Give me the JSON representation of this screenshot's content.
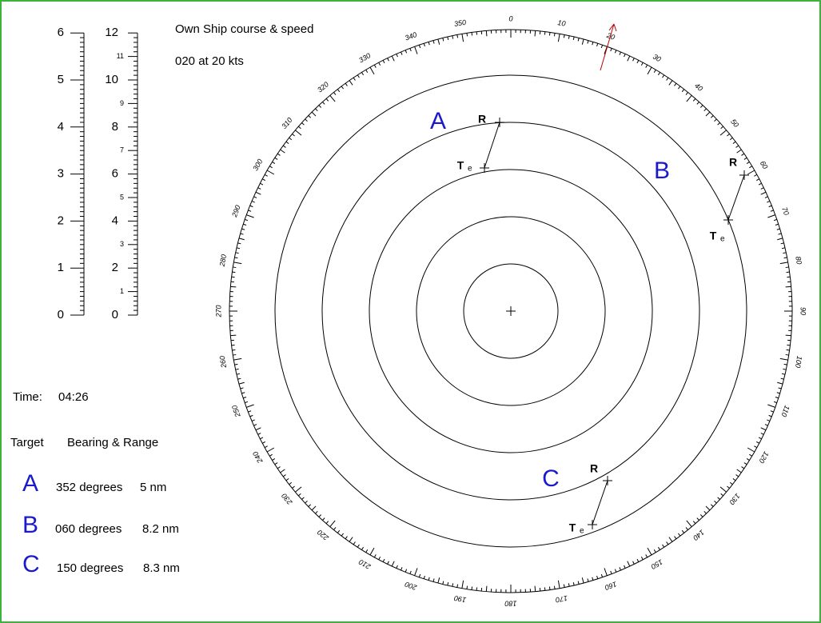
{
  "header": {
    "title": "Own Ship course & speed",
    "course_speed": "020 at 20 kts"
  },
  "time": {
    "label": "Time:",
    "value": "04:26"
  },
  "table": {
    "headers": [
      "Target",
      "Bearing & Range"
    ],
    "rows": [
      [
        "A",
        "352 degrees",
        "5 nm"
      ],
      [
        "B",
        "060 degrees",
        "8.2 nm"
      ],
      [
        "C",
        "150 degrees",
        "8.3 nm"
      ]
    ]
  },
  "scale_left": {
    "labels": [
      0,
      1,
      2,
      3,
      4,
      5,
      6
    ]
  },
  "scale_right": {
    "major": [
      0,
      2,
      4,
      6,
      8,
      10,
      12
    ],
    "minor": [
      1,
      3,
      5,
      7,
      9,
      11
    ]
  },
  "compass": {
    "labels": [
      0,
      10,
      20,
      30,
      40,
      50,
      60,
      70,
      80,
      90,
      100,
      110,
      120,
      130,
      140,
      150,
      160,
      170,
      180,
      190,
      200,
      210,
      220,
      230,
      240,
      250,
      260,
      270,
      280,
      290,
      300,
      310,
      320,
      330,
      340,
      350
    ]
  },
  "plot": {
    "r_label": "R",
    "t_label": "T",
    "t_sub": "e"
  }
}
